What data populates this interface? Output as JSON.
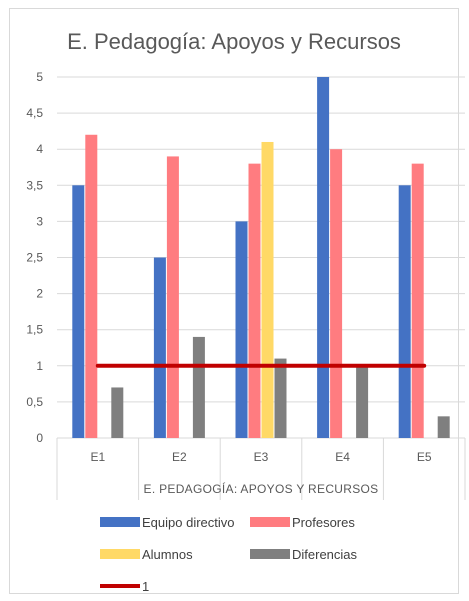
{
  "chart_data": {
    "type": "bar",
    "title": "E. Pedagogía: Apoyos y Recursos",
    "xlabel": "E. PEDAGOGÍA: APOYOS Y RECURSOS",
    "ylabel": "",
    "categories": [
      "E1",
      "E2",
      "E3",
      "E4",
      "E5"
    ],
    "ylim": [
      0,
      5
    ],
    "yticks": [
      "0",
      "0,5",
      "1",
      "1,5",
      "2",
      "2,5",
      "3",
      "3,5",
      "4",
      "4,5",
      "5"
    ],
    "grid": true,
    "legend_position": "bottom",
    "series": [
      {
        "name": "Equipo directivo",
        "color": "#4472c4",
        "values": [
          3.5,
          2.5,
          3.0,
          5.0,
          3.5
        ]
      },
      {
        "name": "Profesores",
        "color": "#ff7c80",
        "values": [
          4.2,
          3.9,
          3.8,
          4.0,
          3.8
        ]
      },
      {
        "name": "Alumnos",
        "color": "#ffd966",
        "values": [
          null,
          null,
          4.1,
          null,
          null
        ]
      },
      {
        "name": "Diferencias",
        "color": "#7f7f7f",
        "values": [
          0.7,
          1.4,
          1.1,
          1.0,
          0.3
        ]
      }
    ],
    "line_series": {
      "name": "1",
      "color": "#c00000",
      "values": [
        1,
        1,
        1,
        1,
        1
      ]
    }
  }
}
